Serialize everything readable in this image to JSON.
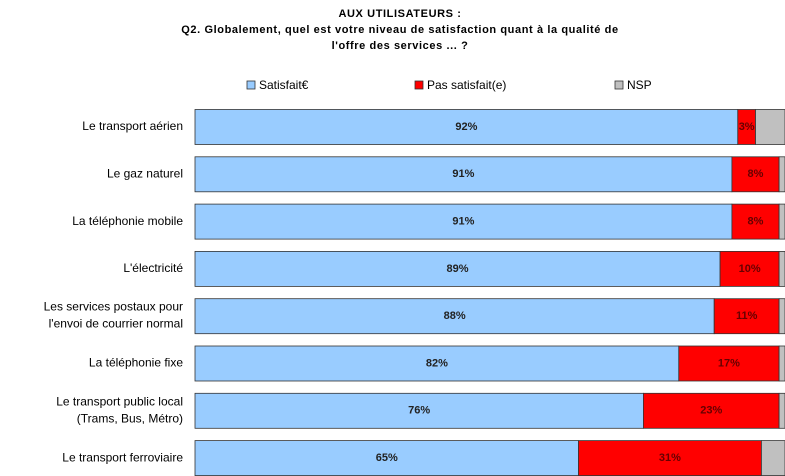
{
  "chart_data": {
    "type": "stacked_bar_horizontal",
    "title": "AUX UTILISATEURS :",
    "subtitle": "Q2. Globalement, quel est votre niveau de satisfaction quant à la qualité de\nl'offre des services ... ?",
    "categories": [
      "Le transport aérien",
      "Le gaz naturel",
      "La téléphonie mobile",
      "L'électricité",
      "Les services postaux pour\nl'envoi de courrier normal",
      "La téléphonie fixe",
      "Le transport public local\n(Trams, Bus, Métro)",
      "Le transport ferroviaire"
    ],
    "series": [
      {
        "name": "Satisfait€",
        "color": "#99ccff",
        "label_color": "#222222",
        "values": [
          92,
          91,
          91,
          89,
          88,
          82,
          76,
          65
        ],
        "value_labels": [
          "92%",
          "91%",
          "91%",
          "89%",
          "88%",
          "82%",
          "76%",
          "65%"
        ]
      },
      {
        "name": "Pas satisfait(e)",
        "color": "#ff0000",
        "label_color": "#660000",
        "values": [
          3,
          8,
          8,
          10,
          11,
          17,
          23,
          31
        ],
        "value_labels": [
          "3%",
          "8%",
          "8%",
          "10%",
          "11%",
          "17%",
          "23%",
          "31%"
        ]
      },
      {
        "name": "NSP",
        "color": "#c0c0c0",
        "values": [
          5,
          1,
          1,
          1,
          1,
          1,
          1,
          4
        ]
      }
    ],
    "xlim": [
      0,
      100
    ]
  }
}
